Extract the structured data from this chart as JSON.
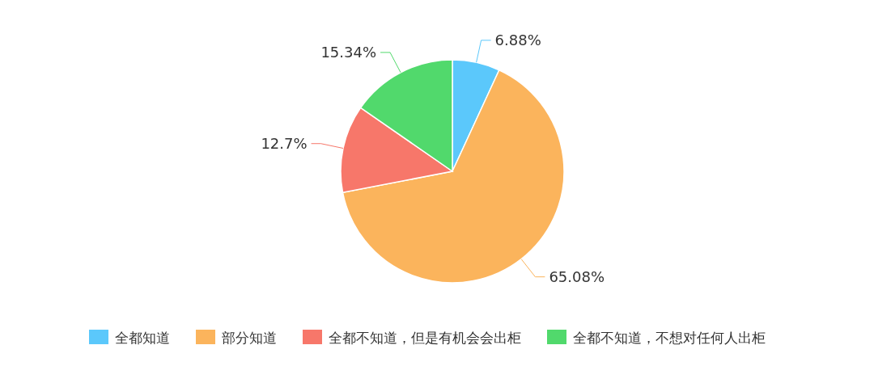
{
  "chart_data": {
    "type": "pie",
    "categories": [
      "全都知道",
      "部分知道",
      "全都不知道，但是有机会会出柜",
      "全都不知道，不想对任何人出柜"
    ],
    "values": [
      6.88,
      65.08,
      12.7,
      15.34
    ],
    "colors": [
      "#5bc8fb",
      "#fbb45c",
      "#f7776a",
      "#51d96c"
    ],
    "value_labels": [
      "6.88%",
      "65.08%",
      "12.7%",
      "15.34%"
    ],
    "legend": "bottom"
  }
}
